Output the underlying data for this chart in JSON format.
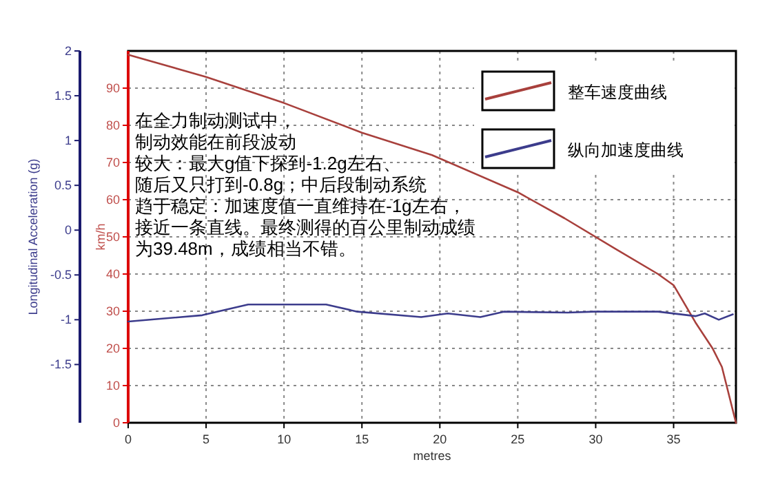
{
  "chart_data": {
    "type": "line",
    "xlabel": "metres",
    "ylabel": "Longitudinal Acceleration (g)",
    "y2label": "km/h",
    "xlim": [
      0,
      39
    ],
    "xticks": [
      0,
      5,
      10,
      15,
      20,
      25,
      30,
      35
    ],
    "ylim": [
      -2.15,
      2
    ],
    "yticks": [
      -1.5,
      -1,
      -0.5,
      0,
      0.5,
      1,
      1.5,
      2
    ],
    "y2lim": [
      0,
      100
    ],
    "y2ticks": [
      0,
      10,
      20,
      30,
      40,
      50,
      60,
      70,
      80,
      90
    ],
    "grid": true,
    "legend": "top right",
    "series": [
      {
        "name": "整车速度曲线",
        "color": "#a8403c",
        "axis": "y2",
        "x": [
          0,
          5,
          10,
          15,
          19.5,
          25,
          28,
          31.3,
          34,
          35,
          36.4,
          37.5,
          38.1,
          38.7,
          39
        ],
        "values": [
          99,
          93,
          86,
          78,
          72,
          62,
          55,
          46.7,
          40,
          37,
          27,
          20,
          15,
          5,
          0
        ]
      },
      {
        "name": "纵向加速度曲线",
        "color": "#3c3c8c",
        "axis": "y",
        "x": [
          0,
          4.75,
          7.7,
          12.7,
          14.7,
          18.8,
          20.5,
          22.6,
          24.1,
          28.2,
          29.9,
          34,
          36.4,
          37,
          37.9,
          38.8
        ],
        "values": [
          -1.02,
          -0.95,
          -0.83,
          -0.83,
          -0.91,
          -0.97,
          -0.93,
          -0.97,
          -0.91,
          -0.92,
          -0.91,
          -0.91,
          -0.96,
          -0.93,
          -1.0,
          -0.94
        ]
      }
    ],
    "annotations": [
      "在全力制动测试中，",
      "制动效能在前段波动",
      "较大：最大g值下探到-1.2g左右、",
      "随后又只打到-0.8g；中后段制动系统",
      "趋于稳定：加速度值一直维持在-1g左右，",
      "接近一条直线。最终测得的百公里制动成绩",
      "为39.48m，成绩相当不错。"
    ]
  }
}
